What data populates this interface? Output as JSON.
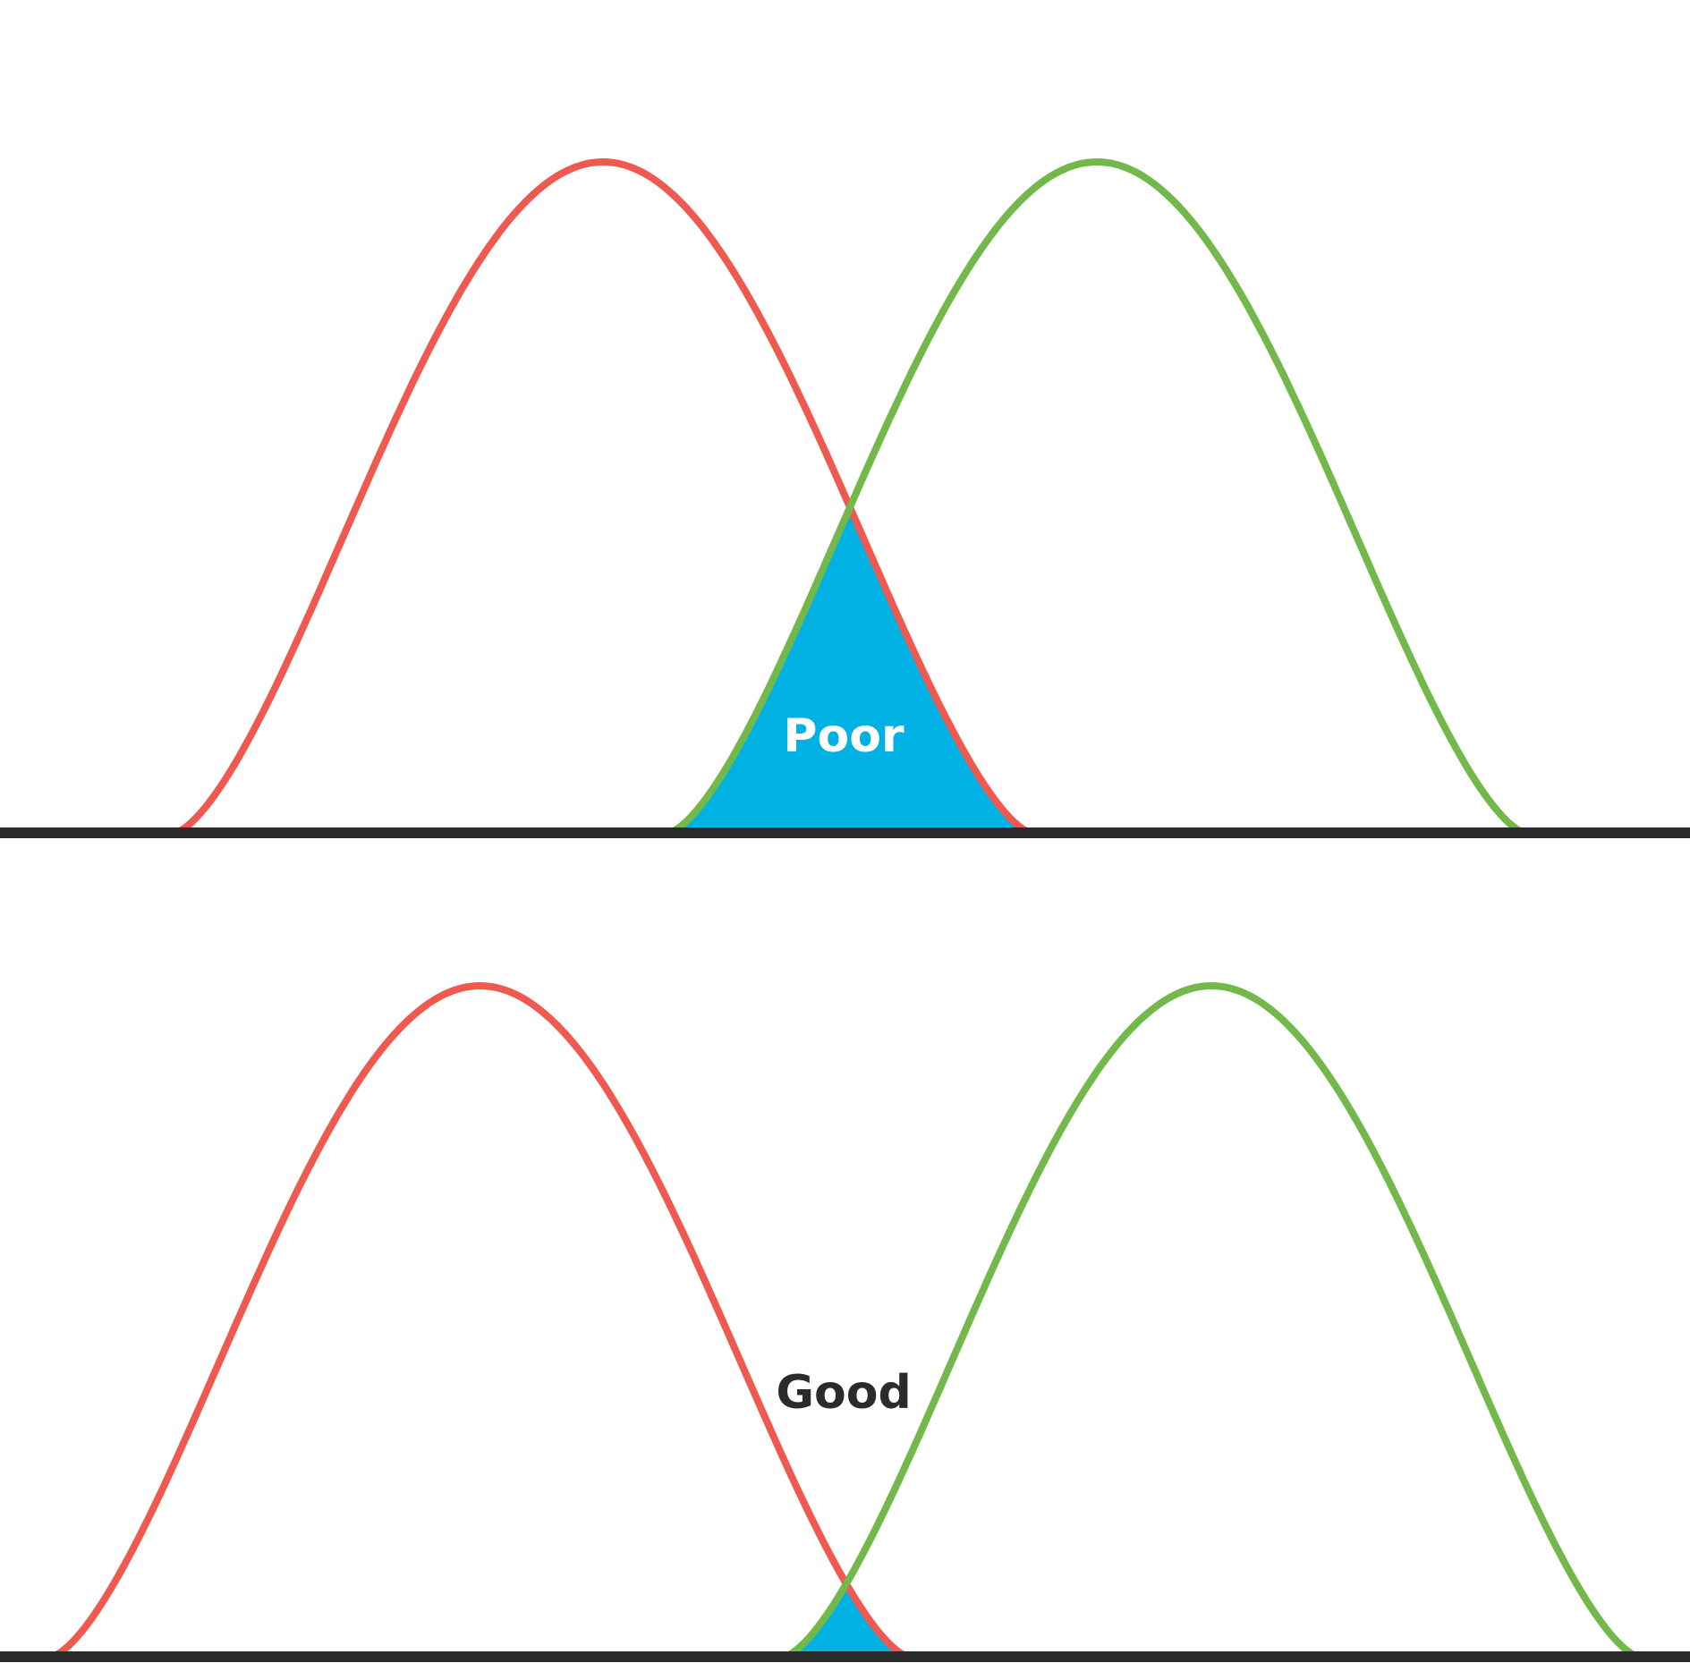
{
  "panels": [
    {
      "label": "Poor"
    },
    {
      "label": "Good"
    }
  ]
}
